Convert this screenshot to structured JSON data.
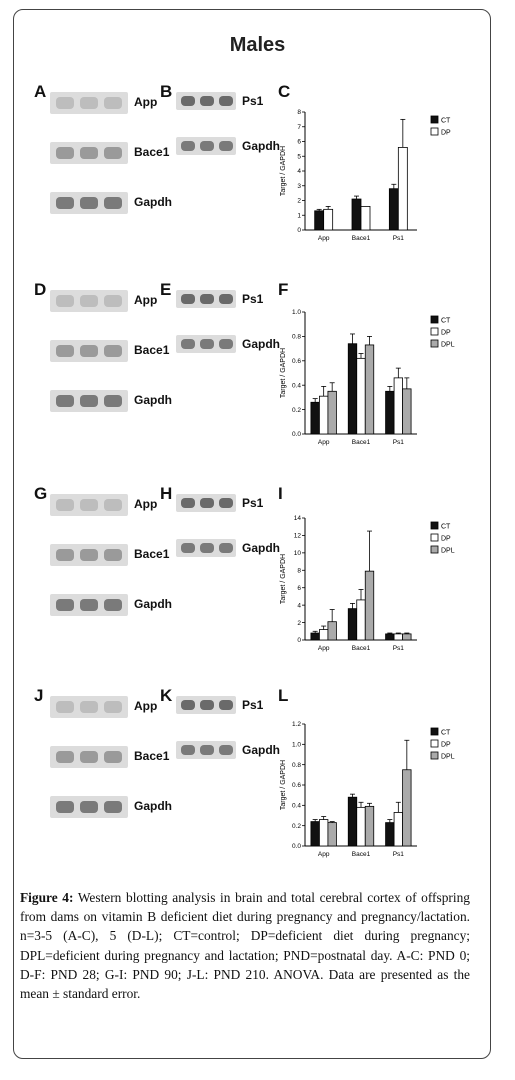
{
  "figure_title": "Males",
  "rows": [
    {
      "blots_left": {
        "letter": "A",
        "labels": [
          "App",
          "Bace1",
          "Gapdh"
        ]
      },
      "blots_right": {
        "letter": "B",
        "labels": [
          "Ps1",
          "Gapdh"
        ]
      },
      "chart_letter": "C"
    },
    {
      "blots_left": {
        "letter": "D",
        "labels": [
          "App",
          "Bace1",
          "Gapdh"
        ]
      },
      "blots_right": {
        "letter": "E",
        "labels": [
          "Ps1",
          "Gapdh"
        ]
      },
      "chart_letter": "F"
    },
    {
      "blots_left": {
        "letter": "G",
        "labels": [
          "App",
          "Bace1",
          "Gapdh"
        ]
      },
      "blots_right": {
        "letter": "H",
        "labels": [
          "Ps1",
          "Gapdh"
        ]
      },
      "chart_letter": "I"
    },
    {
      "blots_left": {
        "letter": "J",
        "labels": [
          "App",
          "Bace1",
          "Gapdh"
        ]
      },
      "blots_right": {
        "letter": "K",
        "labels": [
          "Ps1",
          "Gapdh"
        ]
      },
      "chart_letter": "L"
    }
  ],
  "chart_data": [
    {
      "type": "bar",
      "ylabel": "Target / GAPDH",
      "categories": [
        "App",
        "Bace1",
        "Ps1"
      ],
      "ylim": [
        0,
        8
      ],
      "yticks": [
        0,
        1,
        2,
        3,
        4,
        5,
        6,
        7,
        8
      ],
      "legend_position": "top-right",
      "series": [
        {
          "name": "CT",
          "color": "#111111",
          "values": [
            1.3,
            2.1,
            2.8
          ],
          "errors": [
            0.1,
            0.2,
            0.3
          ]
        },
        {
          "name": "DP",
          "color": "#ffffff",
          "values": [
            1.4,
            1.6,
            5.6
          ],
          "errors": [
            0.2,
            0.0,
            1.9
          ]
        }
      ]
    },
    {
      "type": "bar",
      "ylabel": "Target / GAPDH",
      "categories": [
        "App",
        "Bace1",
        "Ps1"
      ],
      "ylim": [
        0,
        1.0
      ],
      "yticks": [
        0,
        0.2,
        0.4,
        0.6,
        0.8,
        1.0
      ],
      "legend_position": "top-right",
      "series": [
        {
          "name": "CT",
          "color": "#111111",
          "values": [
            0.26,
            0.74,
            0.35
          ],
          "errors": [
            0.03,
            0.08,
            0.04
          ]
        },
        {
          "name": "DP",
          "color": "#ffffff",
          "values": [
            0.31,
            0.62,
            0.46
          ],
          "errors": [
            0.08,
            0.04,
            0.08
          ]
        },
        {
          "name": "DPL",
          "color": "#aaaaaa",
          "values": [
            0.35,
            0.73,
            0.37
          ],
          "errors": [
            0.07,
            0.07,
            0.09
          ]
        }
      ]
    },
    {
      "type": "bar",
      "ylabel": "Target / GAPDH",
      "categories": [
        "App",
        "Bace1",
        "Ps1"
      ],
      "ylim": [
        0,
        14
      ],
      "yticks": [
        0,
        2,
        4,
        6,
        8,
        10,
        12,
        14
      ],
      "legend_position": "top-right",
      "series": [
        {
          "name": "CT",
          "color": "#111111",
          "values": [
            0.8,
            3.6,
            0.7
          ],
          "errors": [
            0.2,
            0.6,
            0.1
          ]
        },
        {
          "name": "DP",
          "color": "#ffffff",
          "values": [
            1.2,
            4.6,
            0.7
          ],
          "errors": [
            0.4,
            1.2,
            0.1
          ]
        },
        {
          "name": "DPL",
          "color": "#aaaaaa",
          "values": [
            2.1,
            7.9,
            0.7
          ],
          "errors": [
            1.4,
            4.6,
            0.1
          ]
        }
      ]
    },
    {
      "type": "bar",
      "ylabel": "Target / GAPDH",
      "categories": [
        "App",
        "Bace1",
        "Ps1"
      ],
      "ylim": [
        0,
        1.2
      ],
      "yticks": [
        0,
        0.2,
        0.4,
        0.6,
        0.8,
        1.0,
        1.2
      ],
      "legend_position": "top-right",
      "series": [
        {
          "name": "CT",
          "color": "#111111",
          "values": [
            0.24,
            0.48,
            0.23
          ],
          "errors": [
            0.02,
            0.03,
            0.03
          ]
        },
        {
          "name": "DP",
          "color": "#ffffff",
          "values": [
            0.26,
            0.38,
            0.33
          ],
          "errors": [
            0.03,
            0.05,
            0.1
          ]
        },
        {
          "name": "DPL",
          "color": "#aaaaaa",
          "values": [
            0.23,
            0.39,
            0.75
          ],
          "errors": [
            0.01,
            0.03,
            0.29
          ]
        }
      ]
    }
  ],
  "caption": {
    "label": "Figure 4:",
    "text": " Western blotting analysis in brain and total cerebral cortex of offspring from dams on vitamin B deficient diet during pregnancy and pregnancy/lactation. n=3-5 (A-C), 5 (D-L); CT=control; DP=deficient diet during pregnancy; DPL=deficient during pregnancy and lactation; PND=postnatal day. A-C: PND 0; D-F: PND 28; G-I: PND 90; J-L: PND 210. ANOVA. Data are presented as the mean ± standard error."
  }
}
